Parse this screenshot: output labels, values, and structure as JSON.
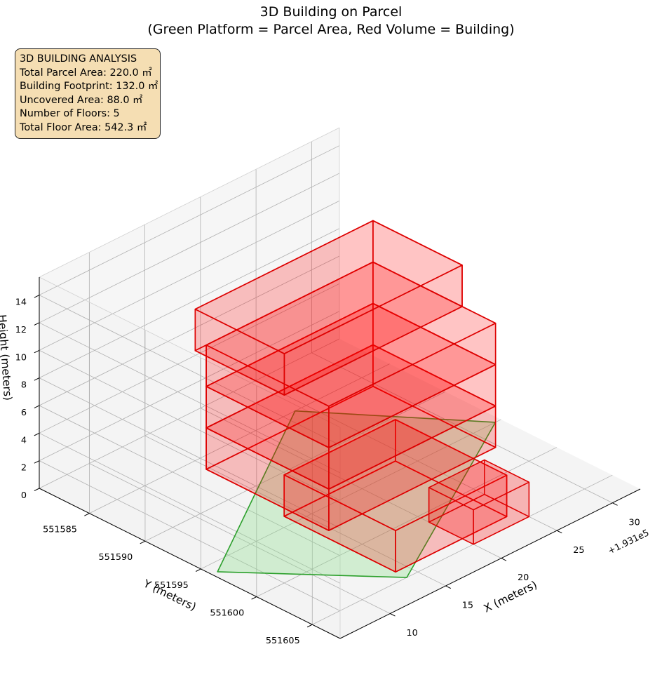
{
  "title_line1": "3D Building on Parcel",
  "title_line2": "(Green Platform = Parcel Area, Red Volume = Building)",
  "info": {
    "heading": "3D BUILDING ANALYSIS",
    "total_parcel_area": "Total Parcel Area: 220.0 ㎡",
    "building_footprint": "Building Footprint: 132.0 ㎡",
    "uncovered_area": "Uncovered Area: 88.0 ㎡",
    "number_of_floors": "Number of Floors: 5",
    "total_floor_area": "Total Floor Area: 542.3 ㎡"
  },
  "chart_data": {
    "type": "3d-polygons",
    "title": "3D Building on Parcel\n(Green Platform = Parcel Area, Red Volume = Building)",
    "xlabel": "X (meters)",
    "ylabel": "Y (meters)",
    "zlabel": "Height (meters)",
    "x_offset_label": "+1.931e5",
    "x_ticks": [
      "10",
      "15",
      "20",
      "25",
      "30"
    ],
    "y_ticks": [
      "551585",
      "551590",
      "551595",
      "551600",
      "551605"
    ],
    "z_ticks": [
      "0",
      "2",
      "4",
      "6",
      "8",
      "10",
      "12",
      "14"
    ],
    "xlim": [
      193105.5,
      193132.5
    ],
    "ylim": [
      551580.5,
      551607.5
    ],
    "zlim": [
      0,
      15.3
    ],
    "grid": true,
    "colors": {
      "parcel_fill": "#90e090",
      "parcel_edge": "#2ca02c",
      "building_fill": "#ff0000",
      "building_edge": "#dd0000",
      "pane_left": "#f2f2f2",
      "pane_right": "#ebebeb",
      "pane_floor": "#e6e6e6"
    },
    "parcel": {
      "corners_xy": [
        [
          193114,
          551605
        ],
        [
          193132,
          551595
        ],
        [
          193124,
          551585
        ],
        [
          193106,
          551596
        ]
      ],
      "z": 0
    },
    "floors": [
      {
        "floor": 1,
        "z_bottom": 0.0,
        "z_top": 3.0,
        "x_range": [
          193114,
          193124
        ],
        "y_range": [
          551594,
          551604
        ]
      },
      {
        "floor": 2,
        "z_bottom": 3.0,
        "z_top": 6.0,
        "x_range": [
          193111,
          193126
        ],
        "y_range": [
          551590,
          551601
        ]
      },
      {
        "floor": 3,
        "z_bottom": 6.0,
        "z_top": 9.0,
        "x_range": [
          193111,
          193126
        ],
        "y_range": [
          551590,
          551601
        ]
      },
      {
        "floor": 4,
        "z_bottom": 9.0,
        "z_top": 12.0,
        "x_range": [
          193111,
          193126
        ],
        "y_range": [
          551590,
          551601
        ]
      },
      {
        "floor": 5,
        "z_bottom": 12.0,
        "z_top": 15.0,
        "x_range": [
          193110,
          193126
        ],
        "y_range": [
          551590,
          551598
        ]
      }
    ],
    "small_block": {
      "z_bottom": 0.0,
      "z_top": 2.5,
      "x_range": [
        193120,
        193125
      ],
      "y_range": [
        551601,
        551605
      ]
    }
  }
}
